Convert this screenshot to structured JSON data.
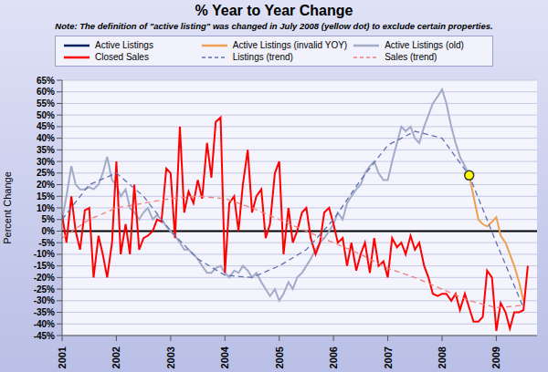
{
  "chart_data": {
    "type": "line",
    "title": "% Year to Year Change",
    "subtitle": "Note: The definition of \"active listing\" was changed in July 2008 (yellow dot) to exclude certain properties.",
    "y_label": "Percent Change",
    "xlim": [
      2001,
      2009.75
    ],
    "xticks": [
      2001,
      2002,
      2003,
      2004,
      2005,
      2006,
      2007,
      2008,
      2009
    ],
    "ylim": [
      -45,
      65
    ],
    "yticks": [
      {
        "value": -45,
        "label": "-45%"
      },
      {
        "value": -40,
        "label": "-40%"
      },
      {
        "value": -35,
        "label": "-35%"
      },
      {
        "value": -30,
        "label": "-30%"
      },
      {
        "value": -25,
        "label": "-25%"
      },
      {
        "value": -20,
        "label": "-20%"
      },
      {
        "value": -15,
        "label": "-15%"
      },
      {
        "value": -10,
        "label": "-10%"
      },
      {
        "value": -5,
        "label": "-5%"
      },
      {
        "value": 0,
        "label": "0%"
      },
      {
        "value": 5,
        "label": "5%"
      },
      {
        "value": 10,
        "label": "10%"
      },
      {
        "value": 15,
        "label": "15%"
      },
      {
        "value": 20,
        "label": "20%"
      },
      {
        "value": 25,
        "label": "25%"
      },
      {
        "value": 30,
        "label": "30%"
      },
      {
        "value": 35,
        "label": "35%"
      },
      {
        "value": 40,
        "label": "40%"
      },
      {
        "value": 45,
        "label": "45%"
      },
      {
        "value": 50,
        "label": "50%"
      },
      {
        "value": 55,
        "label": "55%"
      },
      {
        "value": 60,
        "label": "60%"
      },
      {
        "value": 65,
        "label": "65%"
      }
    ],
    "grid": true,
    "legend": "top",
    "baseline": 0,
    "highlight": {
      "x": 2008.5,
      "y": 24,
      "color": "#ffff00"
    },
    "series": [
      {
        "name": "Active Listings",
        "color": "#002060",
        "line_style": "solid",
        "marker": "none",
        "x": [],
        "values": []
      },
      {
        "name": "Active Listings (invalid YOY)",
        "color": "#f0a050",
        "line_style": "solid",
        "marker": "none",
        "x": [
          2008.5,
          2008.58,
          2008.67,
          2008.75,
          2008.83,
          2008.92,
          2009.0,
          2009.08,
          2009.17,
          2009.25,
          2009.33,
          2009.42,
          2009.5
        ],
        "values": [
          24,
          15,
          5,
          3,
          2,
          4,
          6,
          -2,
          -5,
          -10,
          -15,
          -22,
          -30
        ]
      },
      {
        "name": "Active Listings (old)",
        "color": "#a3abc9",
        "line_style": "solid",
        "marker": "none",
        "x": [
          2001.0,
          2001.08,
          2001.17,
          2001.25,
          2001.33,
          2001.42,
          2001.5,
          2001.58,
          2001.67,
          2001.75,
          2001.83,
          2001.92,
          2002.0,
          2002.08,
          2002.17,
          2002.25,
          2002.33,
          2002.42,
          2002.5,
          2002.58,
          2002.67,
          2002.75,
          2002.83,
          2002.92,
          2003.0,
          2003.08,
          2003.17,
          2003.25,
          2003.33,
          2003.42,
          2003.5,
          2003.58,
          2003.67,
          2003.75,
          2003.83,
          2003.92,
          2004.0,
          2004.08,
          2004.17,
          2004.25,
          2004.33,
          2004.42,
          2004.5,
          2004.58,
          2004.67,
          2004.75,
          2004.83,
          2004.92,
          2005.0,
          2005.08,
          2005.17,
          2005.25,
          2005.33,
          2005.42,
          2005.5,
          2005.58,
          2005.67,
          2005.75,
          2005.83,
          2005.92,
          2006.0,
          2006.08,
          2006.17,
          2006.25,
          2006.33,
          2006.42,
          2006.5,
          2006.58,
          2006.67,
          2006.75,
          2006.83,
          2006.92,
          2007.0,
          2007.08,
          2007.17,
          2007.25,
          2007.33,
          2007.42,
          2007.5,
          2007.58,
          2007.67,
          2007.75,
          2007.83,
          2007.92,
          2008.0,
          2008.08,
          2008.17,
          2008.25,
          2008.33,
          2008.42,
          2008.5
        ],
        "values": [
          5,
          15,
          28,
          20,
          18,
          18,
          19,
          18,
          20,
          25,
          32,
          22,
          20,
          15,
          18,
          10,
          8,
          5,
          8,
          10,
          5,
          7,
          5,
          2,
          0,
          -2,
          -5,
          -8,
          -8,
          -10,
          -12,
          -15,
          -18,
          -18,
          -16,
          -15,
          -18,
          -20,
          -17,
          -18,
          -15,
          -17,
          -20,
          -18,
          -22,
          -25,
          -28,
          -25,
          -30,
          -27,
          -22,
          -25,
          -20,
          -18,
          -15,
          -12,
          -8,
          -5,
          -3,
          0,
          3,
          8,
          5,
          12,
          15,
          18,
          20,
          25,
          28,
          30,
          25,
          22,
          22,
          30,
          38,
          45,
          43,
          45,
          40,
          38,
          45,
          50,
          55,
          58,
          61,
          55,
          45,
          38,
          32,
          28,
          24
        ]
      },
      {
        "name": "Closed Sales",
        "color": "#ff0000",
        "line_style": "solid",
        "marker": "none",
        "x": [
          2001.0,
          2001.08,
          2001.17,
          2001.25,
          2001.33,
          2001.42,
          2001.5,
          2001.58,
          2001.67,
          2001.75,
          2001.83,
          2001.92,
          2002.0,
          2002.08,
          2002.17,
          2002.25,
          2002.33,
          2002.42,
          2002.5,
          2002.58,
          2002.67,
          2002.75,
          2002.83,
          2002.92,
          2003.0,
          2003.08,
          2003.17,
          2003.25,
          2003.33,
          2003.42,
          2003.5,
          2003.58,
          2003.67,
          2003.75,
          2003.83,
          2003.92,
          2004.0,
          2004.08,
          2004.17,
          2004.25,
          2004.33,
          2004.42,
          2004.5,
          2004.58,
          2004.67,
          2004.75,
          2004.83,
          2004.92,
          2005.0,
          2005.08,
          2005.17,
          2005.25,
          2005.33,
          2005.42,
          2005.5,
          2005.58,
          2005.67,
          2005.75,
          2005.83,
          2005.92,
          2006.0,
          2006.08,
          2006.17,
          2006.25,
          2006.33,
          2006.42,
          2006.5,
          2006.58,
          2006.67,
          2006.75,
          2006.83,
          2006.92,
          2007.0,
          2007.08,
          2007.17,
          2007.25,
          2007.33,
          2007.42,
          2007.5,
          2007.58,
          2007.67,
          2007.75,
          2007.83,
          2007.92,
          2008.0,
          2008.08,
          2008.17,
          2008.25,
          2008.33,
          2008.42,
          2008.5,
          2008.58,
          2008.67,
          2008.75,
          2008.83,
          2008.92,
          2009.0,
          2009.08,
          2009.17,
          2009.25,
          2009.33,
          2009.42,
          2009.5,
          2009.58
        ],
        "values": [
          7,
          -5,
          15,
          0,
          -8,
          9,
          10,
          -20,
          -2,
          -10,
          -20,
          -5,
          30,
          -10,
          3,
          -10,
          20,
          -8,
          -3,
          -2,
          0,
          5,
          4,
          27,
          25,
          -3,
          45,
          8,
          17,
          12,
          22,
          14,
          38,
          23,
          47,
          49,
          -18,
          12,
          15,
          0,
          20,
          35,
          8,
          15,
          18,
          -3,
          3,
          25,
          30,
          -10,
          10,
          -5,
          0,
          8,
          10,
          -3,
          -10,
          -5,
          8,
          10,
          3,
          -5,
          -3,
          -15,
          -5,
          -17,
          -10,
          -5,
          -18,
          -3,
          -15,
          -13,
          -20,
          -3,
          -7,
          -5,
          -10,
          -2,
          -8,
          -5,
          -15,
          -20,
          -27,
          -28,
          -27,
          -27,
          -30,
          -27,
          -34,
          -27,
          -33,
          -39,
          -39,
          -37,
          -17,
          -20,
          -43,
          -31,
          -35,
          -42,
          -35,
          -35,
          -34,
          -15
        ]
      },
      {
        "name": "Listings (trend)",
        "color": "#6070b0",
        "line_style": "dashed",
        "marker": "none",
        "x": [
          2001,
          2001.5,
          2002,
          2002.5,
          2003,
          2003.5,
          2004,
          2004.5,
          2005,
          2005.5,
          2006,
          2006.5,
          2007,
          2007.5,
          2008,
          2008.5,
          2009,
          2009.5
        ],
        "values": [
          5,
          20,
          25,
          15,
          0,
          -12,
          -19,
          -20,
          -15,
          -8,
          5,
          22,
          37,
          43,
          40,
          24,
          -5,
          -33
        ]
      },
      {
        "name": "Sales (trend)",
        "color": "#f08080",
        "line_style": "dashed",
        "marker": "none",
        "x": [
          2001,
          2001.5,
          2002,
          2002.5,
          2003,
          2003.5,
          2004,
          2004.5,
          2005,
          2005.5,
          2006,
          2006.5,
          2007,
          2007.5,
          2008,
          2008.5,
          2009,
          2009.5
        ],
        "values": [
          -3,
          5,
          10,
          12,
          14,
          15,
          14,
          10,
          5,
          0,
          -5,
          -10,
          -16,
          -20,
          -25,
          -30,
          -33,
          -32
        ]
      }
    ]
  }
}
